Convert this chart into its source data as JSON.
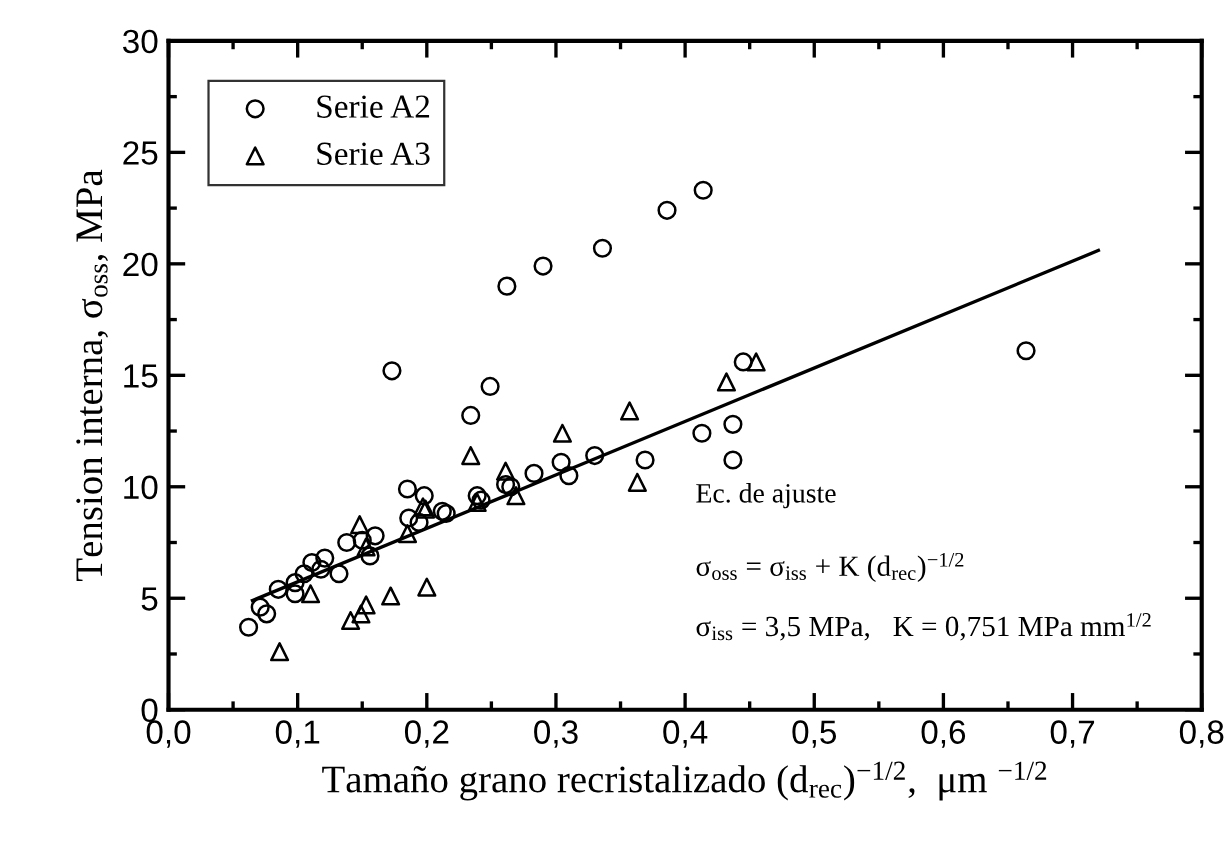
{
  "chart_data": {
    "type": "scatter",
    "xlabel": "Tamaño grano recristalizado (d$_{rec}$)$^{−1/2}$,  μm $^{−1/2}$",
    "ylabel": "Tension interna, σ$_{oss}$, MPa",
    "xlim": [
      0,
      0.8
    ],
    "ylim": [
      0,
      30
    ],
    "xticks": [
      {
        "value": 0,
        "label": "0,0"
      },
      {
        "value": 0.1,
        "label": "0,1"
      },
      {
        "value": 0.2,
        "label": "0,2"
      },
      {
        "value": 0.3,
        "label": "0,3"
      },
      {
        "value": 0.4,
        "label": "0,4"
      },
      {
        "value": 0.5,
        "label": "0,5"
      },
      {
        "value": 0.6,
        "label": "0,6"
      },
      {
        "value": 0.7,
        "label": "0,7"
      },
      {
        "value": 0.8,
        "label": "0,8"
      }
    ],
    "yticks": [
      0,
      5,
      10,
      15,
      20,
      25,
      30
    ],
    "grid": false,
    "legend": "top left",
    "annotations": [
      "Ec. de ajuste",
      "σ$_{oss}$ = σ$_{iss}$ + K (d$_{rec}$)$^{−1/2}$",
      "σ$_{iss}$ = 3,5 MPa,   K = 0,751 MPa mm$^{1/2}$"
    ],
    "series": [
      {
        "name": "Serie A2",
        "marker": "circle",
        "color": "#000000",
        "x": [
          0.062,
          0.071,
          0.076,
          0.085,
          0.098,
          0.098,
          0.105,
          0.111,
          0.118,
          0.121,
          0.132,
          0.138,
          0.15,
          0.156,
          0.16,
          0.173,
          0.185,
          0.186,
          0.194,
          0.198,
          0.212,
          0.215,
          0.234,
          0.239,
          0.242,
          0.249,
          0.261,
          0.262,
          0.265,
          0.283,
          0.29,
          0.304,
          0.31,
          0.33,
          0.336,
          0.369,
          0.386,
          0.413,
          0.414,
          0.437,
          0.437,
          0.445,
          0.664
        ],
        "values": [
          3.7,
          4.6,
          4.3,
          5.4,
          5.7,
          5.2,
          6.1,
          6.6,
          6.3,
          6.8,
          6.1,
          7.5,
          7.6,
          6.9,
          7.8,
          15.2,
          9.9,
          8.6,
          8.4,
          9.6,
          8.9,
          8.8,
          13.2,
          9.6,
          9.4,
          14.5,
          10.1,
          19.0,
          10.0,
          10.6,
          19.9,
          11.1,
          10.5,
          11.4,
          20.7,
          11.2,
          22.4,
          12.4,
          23.3,
          12.8,
          11.2,
          15.6,
          16.1
        ]
      },
      {
        "name": "Serie A3",
        "marker": "triangle",
        "color": "#000000",
        "x": [
          0.086,
          0.11,
          0.141,
          0.148,
          0.149,
          0.153,
          0.153,
          0.172,
          0.185,
          0.197,
          0.199,
          0.2,
          0.234,
          0.239,
          0.261,
          0.269,
          0.305,
          0.357,
          0.363,
          0.432,
          0.455
        ],
        "values": [
          2.6,
          5.2,
          4.0,
          8.3,
          4.3,
          4.7,
          7.3,
          5.1,
          7.9,
          9.1,
          9.0,
          5.5,
          11.4,
          9.3,
          10.7,
          9.6,
          12.4,
          13.4,
          10.2,
          14.7,
          15.6
        ]
      },
      {
        "type": "line",
        "line_style": "solid",
        "color": "#000000",
        "x": [
          0.065,
          0.72
        ],
        "values": [
          4.9,
          20.6
        ]
      }
    ]
  }
}
